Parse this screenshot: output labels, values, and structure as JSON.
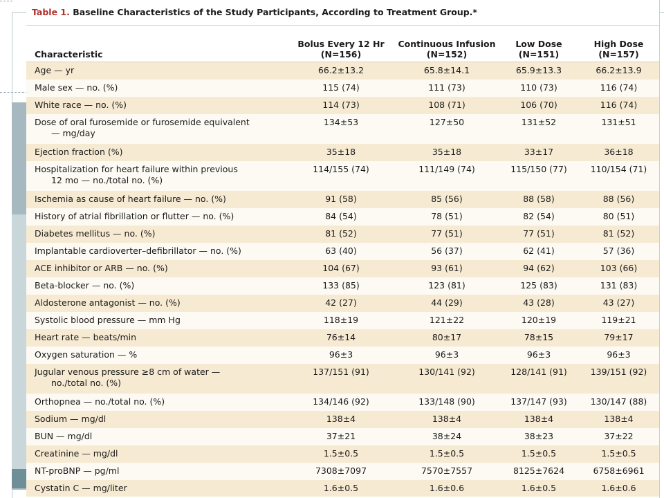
{
  "caption": {
    "number": "Table 1.",
    "text": "Baseline Characteristics of the Study Participants, According to Treatment Group.*"
  },
  "columns": [
    {
      "line1": "Characteristic",
      "line2": ""
    },
    {
      "line1": "Bolus Every 12 Hr",
      "line2": "(N=156)"
    },
    {
      "line1": "Continuous Infusion",
      "line2": "(N=152)"
    },
    {
      "line1": "Low Dose",
      "line2": "(N=151)"
    },
    {
      "line1": "High Dose",
      "line2": "(N=157)"
    }
  ],
  "rows": [
    {
      "label": "Age — yr",
      "cont": "",
      "values": [
        "66.2±13.2",
        "65.8±14.1",
        "65.9±13.3",
        "66.2±13.9"
      ]
    },
    {
      "label": "Male sex — no. (%)",
      "cont": "",
      "values": [
        "115 (74)",
        "111 (73)",
        "110 (73)",
        "116 (74)"
      ]
    },
    {
      "label": "White race — no. (%)",
      "cont": "",
      "values": [
        "114 (73)",
        "108 (71)",
        "106 (70)",
        "116 (74)"
      ]
    },
    {
      "label": "Dose of oral furosemide or furosemide equivalent",
      "cont": "— mg/day",
      "values": [
        "134±53",
        "127±50",
        "131±52",
        "131±51"
      ]
    },
    {
      "label": "Ejection fraction (%)",
      "cont": "",
      "values": [
        "35±18",
        "35±18",
        "33±17",
        "36±18"
      ]
    },
    {
      "label": "Hospitalization for heart failure within previous",
      "cont": "12 mo — no./total no. (%)",
      "values": [
        "114/155 (74)",
        "111/149 (74)",
        "115/150 (77)",
        "110/154 (71)"
      ]
    },
    {
      "label": "Ischemia as cause of heart failure — no. (%)",
      "cont": "",
      "values": [
        "91 (58)",
        "85 (56)",
        "88 (58)",
        "88 (56)"
      ]
    },
    {
      "label": "History of atrial fibrillation or flutter — no. (%)",
      "cont": "",
      "values": [
        "84 (54)",
        "78 (51)",
        "82 (54)",
        "80 (51)"
      ]
    },
    {
      "label": "Diabetes mellitus — no. (%)",
      "cont": "",
      "values": [
        "81 (52)",
        "77 (51)",
        "77 (51)",
        "81 (52)"
      ]
    },
    {
      "label": "Implantable cardioverter–defibrillator — no. (%)",
      "cont": "",
      "values": [
        "63 (40)",
        "56 (37)",
        "62 (41)",
        "57 (36)"
      ]
    },
    {
      "label": "ACE inhibitor or ARB — no. (%)",
      "cont": "",
      "values": [
        "104 (67)",
        "93 (61)",
        "94 (62)",
        "103 (66)"
      ]
    },
    {
      "label": "Beta-blocker — no. (%)",
      "cont": "",
      "values": [
        "133 (85)",
        "123 (81)",
        "125 (83)",
        "131 (83)"
      ]
    },
    {
      "label": "Aldosterone antagonist — no. (%)",
      "cont": "",
      "values": [
        "42 (27)",
        "44 (29)",
        "43 (28)",
        "43 (27)"
      ]
    },
    {
      "label": "Systolic blood pressure — mm Hg",
      "cont": "",
      "values": [
        "118±19",
        "121±22",
        "120±19",
        "119±21"
      ]
    },
    {
      "label": "Heart rate — beats/min",
      "cont": "",
      "values": [
        "76±14",
        "80±17",
        "78±15",
        "79±17"
      ]
    },
    {
      "label": "Oxygen saturation — %",
      "cont": "",
      "values": [
        "96±3",
        "96±3",
        "96±3",
        "96±3"
      ]
    },
    {
      "label": "Jugular venous pressure ≥8 cm of water —",
      "cont": "no./total no. (%)",
      "values": [
        "137/151 (91)",
        "130/141 (92)",
        "128/141 (91)",
        "139/151 (92)"
      ]
    },
    {
      "label": "Orthopnea — no./total no. (%)",
      "cont": "",
      "values": [
        "134/146 (92)",
        "133/148 (90)",
        "137/147 (93)",
        "130/147 (88)"
      ]
    },
    {
      "label": "Sodium — mg/dl",
      "cont": "",
      "values": [
        "138±4",
        "138±4",
        "138±4",
        "138±4"
      ]
    },
    {
      "label": "BUN — mg/dl",
      "cont": "",
      "values": [
        "37±21",
        "38±24",
        "38±23",
        "37±22"
      ]
    },
    {
      "label": "Creatinine — mg/dl",
      "cont": "",
      "values": [
        "1.5±0.5",
        "1.5±0.5",
        "1.5±0.5",
        "1.5±0.5"
      ]
    },
    {
      "label": "NT-proBNP — pg/ml",
      "cont": "",
      "values": [
        "7308±7097",
        "7570±7557",
        "8125±7624",
        "6758±6961"
      ]
    },
    {
      "label": "Cystatin C — mg/liter",
      "cont": "",
      "values": [
        "1.6±0.5",
        "1.6±0.6",
        "1.6±0.5",
        "1.6±0.6"
      ]
    }
  ]
}
